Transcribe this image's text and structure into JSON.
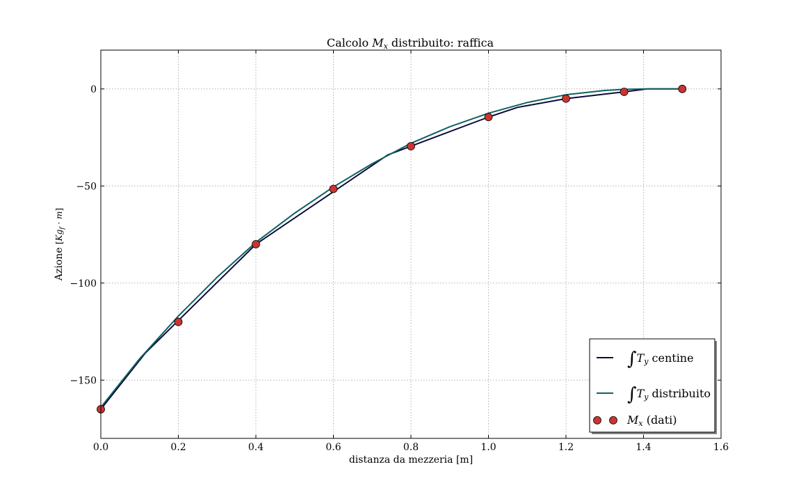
{
  "chart_data": {
    "type": "line",
    "title": {
      "prefix": "Calcolo ",
      "math_main": "M",
      "math_sub": "x",
      "suffix": " distribuito: raffica"
    },
    "xlabel": "distanza da mezzeria [m]",
    "ylabel": {
      "text": "Azione ",
      "units_open": "[",
      "units_k": "K",
      "units_g": "g",
      "units_f": "f",
      "units_dot": " · ",
      "units_m": "m",
      "units_close": "]"
    },
    "xlim": [
      0,
      1.6
    ],
    "ylim": [
      -180,
      20
    ],
    "xticks": [
      0.0,
      0.2,
      0.4,
      0.6,
      0.8,
      1.0,
      1.2,
      1.4,
      1.6
    ],
    "xtick_labels": [
      "0.0",
      "0.2",
      "0.4",
      "0.6",
      "0.8",
      "1.0",
      "1.2",
      "1.4",
      "1.6"
    ],
    "yticks": [
      0,
      -50,
      -100,
      -150
    ],
    "ytick_labels": [
      "0",
      "−50",
      "−100",
      "−150"
    ],
    "grid": true,
    "legend_position": "bottom-right",
    "series": [
      {
        "kind": "line",
        "color": "#0b0b3b",
        "legend": {
          "integral": "∫",
          "math_main": "T",
          "math_sub": "y",
          "suffix": " centine"
        },
        "x": [
          0.0,
          0.115,
          0.4,
          0.74,
          0.8,
          1.0,
          1.075,
          1.2,
          1.35,
          1.41,
          1.5
        ],
        "y": [
          -165,
          -136,
          -80,
          -34,
          -29.5,
          -14.5,
          -9.5,
          -5,
          -1.5,
          0,
          0
        ]
      },
      {
        "kind": "line",
        "color": "#106060",
        "legend": {
          "integral": "∫",
          "math_main": "T",
          "math_sub": "y",
          "suffix": " distribuito"
        },
        "x": [
          0.0,
          0.1,
          0.2,
          0.3,
          0.4,
          0.5,
          0.6,
          0.7,
          0.8,
          0.9,
          1.0,
          1.1,
          1.2,
          1.3,
          1.35,
          1.41,
          1.5
        ],
        "y": [
          -164,
          -139,
          -117,
          -97,
          -79,
          -64,
          -50.5,
          -38.5,
          -28,
          -19.5,
          -12.5,
          -7,
          -3,
          -0.8,
          -0.2,
          0,
          0
        ]
      },
      {
        "kind": "scatter",
        "color": "#cc3333",
        "legend": {
          "math_main": "M",
          "math_sub": "x",
          "suffix": " (dati)"
        },
        "x": [
          0.0,
          0.2,
          0.4,
          0.6,
          0.8,
          1.0,
          1.2,
          1.35,
          1.5
        ],
        "y": [
          -165,
          -120,
          -80,
          -51.5,
          -29.5,
          -14.5,
          -5,
          -1.5,
          0
        ]
      }
    ]
  }
}
